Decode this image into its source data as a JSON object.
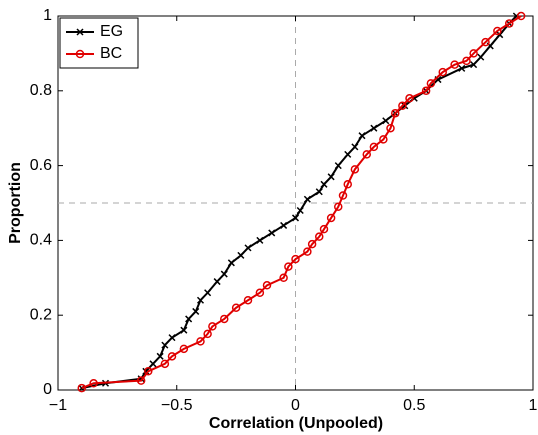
{
  "chart_data": {
    "type": "line",
    "xlabel": "Correlation (Unpooled)",
    "ylabel": "Proportion",
    "xlim": [
      -1,
      1
    ],
    "ylim": [
      0,
      1
    ],
    "xticks": [
      {
        "value": -1,
        "label": "−1"
      },
      {
        "value": -0.5,
        "label": "−0.5"
      },
      0,
      0.5,
      1
    ],
    "yticks": [
      0,
      0.2,
      0.4,
      0.6,
      0.8,
      1
    ],
    "vline": 0,
    "hline": 0.5,
    "legend": "upper left",
    "series": [
      {
        "name": "EG",
        "color": "#000000",
        "marker": "x",
        "x": [
          -0.9,
          -0.8,
          -0.65,
          -0.63,
          -0.6,
          -0.57,
          -0.55,
          -0.52,
          -0.47,
          -0.45,
          -0.42,
          -0.4,
          -0.37,
          -0.33,
          -0.3,
          -0.27,
          -0.23,
          -0.2,
          -0.15,
          -0.1,
          -0.05,
          0.0,
          0.02,
          0.05,
          0.1,
          0.12,
          0.15,
          0.18,
          0.22,
          0.25,
          0.28,
          0.33,
          0.38,
          0.42,
          0.46,
          0.5,
          0.55,
          0.6,
          0.7,
          0.75,
          0.78,
          0.82,
          0.86,
          0.9,
          0.93
        ],
        "values": [
          0.005,
          0.018,
          0.03,
          0.05,
          0.07,
          0.09,
          0.12,
          0.14,
          0.16,
          0.19,
          0.21,
          0.24,
          0.26,
          0.29,
          0.31,
          0.34,
          0.36,
          0.38,
          0.4,
          0.42,
          0.44,
          0.46,
          0.48,
          0.51,
          0.53,
          0.55,
          0.57,
          0.6,
          0.63,
          0.65,
          0.68,
          0.7,
          0.72,
          0.74,
          0.76,
          0.78,
          0.8,
          0.83,
          0.86,
          0.87,
          0.89,
          0.92,
          0.95,
          0.98,
          1.0
        ]
      },
      {
        "name": "BC",
        "color": "#e00000",
        "marker": "o",
        "x": [
          -0.9,
          -0.85,
          -0.65,
          -0.62,
          -0.55,
          -0.52,
          -0.47,
          -0.4,
          -0.37,
          -0.35,
          -0.3,
          -0.25,
          -0.2,
          -0.15,
          -0.12,
          -0.05,
          -0.03,
          0.0,
          0.05,
          0.07,
          0.1,
          0.12,
          0.15,
          0.18,
          0.2,
          0.22,
          0.25,
          0.3,
          0.33,
          0.37,
          0.4,
          0.42,
          0.45,
          0.48,
          0.55,
          0.57,
          0.62,
          0.67,
          0.72,
          0.75,
          0.8,
          0.85,
          0.9,
          0.95
        ],
        "values": [
          0.005,
          0.018,
          0.025,
          0.05,
          0.07,
          0.09,
          0.11,
          0.13,
          0.15,
          0.17,
          0.19,
          0.22,
          0.24,
          0.26,
          0.28,
          0.3,
          0.33,
          0.35,
          0.37,
          0.39,
          0.41,
          0.43,
          0.46,
          0.49,
          0.52,
          0.55,
          0.59,
          0.63,
          0.65,
          0.67,
          0.7,
          0.74,
          0.76,
          0.78,
          0.8,
          0.82,
          0.85,
          0.87,
          0.88,
          0.9,
          0.93,
          0.96,
          0.98,
          1.0
        ]
      }
    ]
  }
}
